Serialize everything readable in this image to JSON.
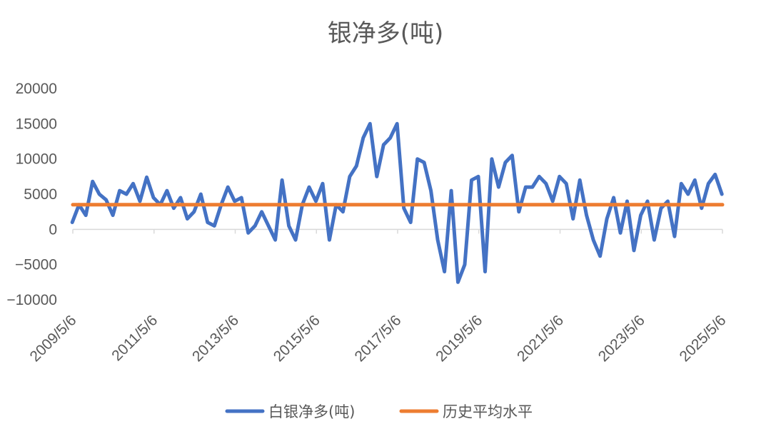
{
  "chart_data": {
    "type": "line",
    "title": "银净多(吨)",
    "xlabel": "",
    "ylabel": "",
    "ylim": [
      -10000,
      20000
    ],
    "yticks": [
      20000,
      15000,
      10000,
      5000,
      0,
      -5000,
      -10000
    ],
    "ytick_labels": [
      "20000",
      "15000",
      "10000",
      "5000",
      "0",
      "−5000",
      "−10000"
    ],
    "xticks": [
      "2009/5/6",
      "2011/5/6",
      "2013/5/6",
      "2015/5/6",
      "2017/5/6",
      "2019/5/6",
      "2021/5/6",
      "2023/5/6",
      "2025/5/6"
    ],
    "grid": false,
    "legend_position": "bottom",
    "series": [
      {
        "name": "白银净多(吨)",
        "color": "#4472C4",
        "x": [
          "2009-05",
          "2009-07",
          "2009-09",
          "2009-11",
          "2010-01",
          "2010-03",
          "2010-05",
          "2010-07",
          "2010-09",
          "2010-11",
          "2011-01",
          "2011-03",
          "2011-05",
          "2011-07",
          "2011-09",
          "2011-11",
          "2012-01",
          "2012-03",
          "2012-05",
          "2012-07",
          "2012-09",
          "2012-11",
          "2013-01",
          "2013-03",
          "2013-05",
          "2013-07",
          "2013-09",
          "2013-11",
          "2014-01",
          "2014-03",
          "2014-05",
          "2014-07",
          "2014-09",
          "2014-11",
          "2015-01",
          "2015-03",
          "2015-05",
          "2015-07",
          "2015-09",
          "2015-11",
          "2016-01",
          "2016-03",
          "2016-05",
          "2016-07",
          "2016-09",
          "2016-11",
          "2017-01",
          "2017-03",
          "2017-05",
          "2017-07",
          "2017-09",
          "2017-11",
          "2018-01",
          "2018-03",
          "2018-05",
          "2018-07",
          "2018-09",
          "2018-11",
          "2019-01",
          "2019-03",
          "2019-05",
          "2019-07",
          "2019-09",
          "2019-11",
          "2020-01",
          "2020-03",
          "2020-05",
          "2020-07",
          "2020-09",
          "2020-11",
          "2021-01",
          "2021-03",
          "2021-05",
          "2021-07",
          "2021-09",
          "2021-11",
          "2022-01",
          "2022-03",
          "2022-05",
          "2022-07",
          "2022-09",
          "2022-11",
          "2023-01",
          "2023-03",
          "2023-05",
          "2023-07",
          "2023-09",
          "2023-11",
          "2024-01",
          "2024-03",
          "2024-05",
          "2024-07",
          "2024-09",
          "2024-11",
          "2025-01",
          "2025-03",
          "2025-05"
        ],
        "values": [
          1000,
          3500,
          2000,
          6800,
          5000,
          4200,
          2000,
          5500,
          5000,
          6500,
          4000,
          7400,
          4500,
          3500,
          5500,
          3000,
          4500,
          1500,
          2500,
          5000,
          1000,
          500,
          3500,
          6000,
          4000,
          4500,
          -500,
          500,
          2500,
          500,
          -1500,
          7000,
          500,
          -1500,
          3500,
          6000,
          4000,
          6500,
          -1500,
          3500,
          2500,
          7500,
          9000,
          13000,
          15000,
          7500,
          12000,
          13000,
          15000,
          3000,
          1000,
          10000,
          9500,
          5500,
          -1500,
          -6000,
          5500,
          -7500,
          -5000,
          7000,
          7500,
          -6000,
          10000,
          6000,
          9500,
          10500,
          2500,
          6000,
          6000,
          7500,
          6500,
          4000,
          7500,
          6500,
          1500,
          7000,
          2000,
          -1500,
          -3800,
          1500,
          4500,
          -500,
          4000,
          -3000,
          2000,
          4000,
          -1500,
          3000,
          4000,
          -1000,
          6500,
          5000,
          7000,
          3000,
          6500,
          7800,
          5000
        ],
        "stroke_width": 5
      },
      {
        "name": "历史平均水平",
        "color": "#ED7D31",
        "constant": 3500,
        "stroke_width": 5
      }
    ]
  }
}
